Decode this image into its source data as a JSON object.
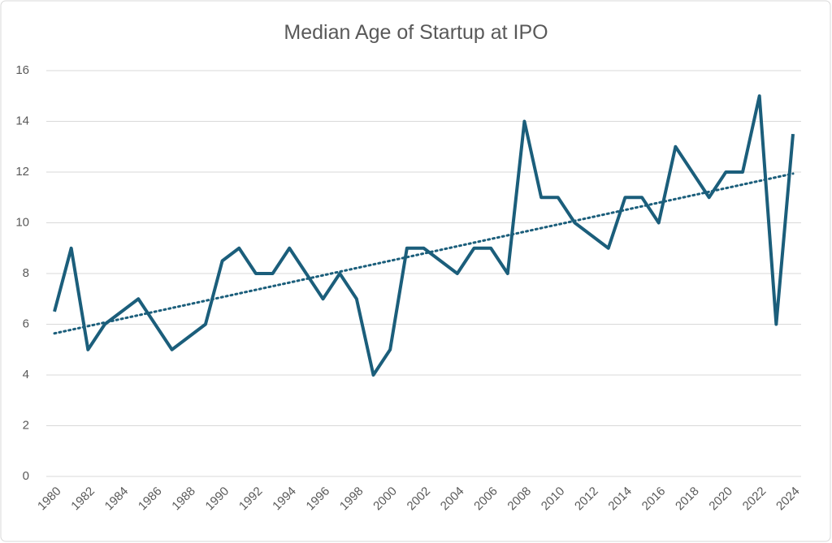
{
  "chart_data": {
    "type": "line",
    "title": "Median Age of Startup at IPO",
    "x": [
      1980,
      1981,
      1982,
      1983,
      1984,
      1985,
      1986,
      1987,
      1988,
      1989,
      1990,
      1991,
      1992,
      1993,
      1994,
      1995,
      1996,
      1997,
      1998,
      1999,
      2000,
      2001,
      2002,
      2003,
      2004,
      2005,
      2006,
      2007,
      2008,
      2009,
      2010,
      2011,
      2012,
      2013,
      2014,
      2015,
      2016,
      2017,
      2018,
      2019,
      2020,
      2021,
      2022,
      2023,
      2024
    ],
    "series": [
      {
        "color": "#1b5e7b",
        "values": [
          6.5,
          9,
          5,
          6,
          6.5,
          7,
          6,
          5,
          5.5,
          6,
          8.5,
          9,
          8,
          8,
          9,
          8,
          7,
          8,
          7,
          4,
          5,
          9,
          9,
          8.5,
          8,
          9,
          9,
          8,
          14,
          11,
          11,
          10,
          9.5,
          9,
          11,
          11,
          10,
          13,
          12,
          11,
          12,
          12,
          15,
          6,
          13.5
        ]
      }
    ],
    "trendline": {
      "type": "linear",
      "color": "#1b5e7b"
    },
    "xlim": [
      1980,
      2024
    ],
    "xticks": [
      1980,
      1982,
      1984,
      1986,
      1988,
      1990,
      1992,
      1994,
      1996,
      1998,
      2000,
      2002,
      2004,
      2006,
      2008,
      2010,
      2012,
      2014,
      2016,
      2018,
      2020,
      2022,
      2024
    ],
    "ylim": [
      0,
      16
    ],
    "yticks": [
      0,
      2,
      4,
      6,
      8,
      10,
      12,
      14,
      16
    ],
    "grid": true
  }
}
